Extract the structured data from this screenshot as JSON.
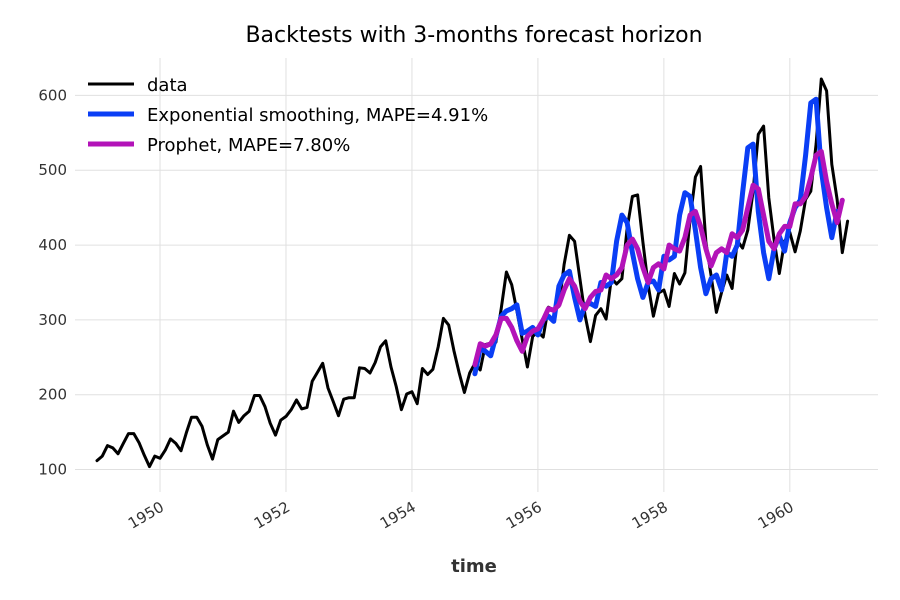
{
  "chart_data": {
    "type": "line",
    "title": "Backtests with 3-months forecast horizon",
    "xlabel": "time",
    "ylabel": "",
    "xlim": [
      1948.65,
      1961.4
    ],
    "ylim": [
      70,
      650
    ],
    "xticks": [
      1950,
      1952,
      1954,
      1956,
      1958,
      1960
    ],
    "xtick_labels": [
      "1950",
      "1952",
      "1954",
      "1956",
      "1958",
      "1960"
    ],
    "yticks": [
      100,
      200,
      300,
      400,
      500,
      600
    ],
    "ytick_labels": [
      "100",
      "200",
      "300",
      "400",
      "500",
      "600"
    ],
    "grid": true,
    "legend_position": "top-left",
    "series": [
      {
        "name": "data",
        "color": "#000000",
        "start": [
          1949,
          1
        ],
        "values": [
          112,
          118,
          132,
          129,
          121,
          135,
          148,
          148,
          136,
          119,
          104,
          118,
          115,
          126,
          141,
          135,
          125,
          149,
          170,
          170,
          158,
          133,
          114,
          140,
          145,
          150,
          178,
          163,
          172,
          178,
          199,
          199,
          184,
          162,
          146,
          166,
          171,
          180,
          193,
          181,
          183,
          218,
          230,
          242,
          209,
          191,
          172,
          194,
          196,
          196,
          236,
          235,
          229,
          243,
          264,
          272,
          237,
          211,
          180,
          201,
          204,
          188,
          235,
          227,
          234,
          264,
          302,
          293,
          259,
          229,
          203,
          229,
          242,
          233,
          267,
          269,
          270,
          315,
          364,
          347,
          312,
          274,
          237,
          278,
          284,
          277,
          317,
          313,
          318,
          374,
          413,
          405,
          355,
          306,
          271,
          306,
          315,
          301,
          356,
          348,
          355,
          422,
          465,
          467,
          404,
          347,
          305,
          336,
          340,
          318,
          362,
          348,
          363,
          435,
          491,
          505,
          404,
          359,
          310,
          337,
          360,
          342,
          406,
          396,
          420,
          472,
          548,
          559,
          463,
          407,
          362,
          405,
          417,
          391,
          419,
          461,
          472,
          535,
          622,
          606,
          508,
          461,
          390,
          432
        ]
      },
      {
        "name": "Exponential smoothing, MAPE=4.91%",
        "color": "#0a3ef5",
        "start": [
          1955,
          1
        ],
        "values": [
          228,
          262,
          258,
          252,
          278,
          305,
          312,
          315,
          320,
          282,
          285,
          290,
          280,
          300,
          305,
          298,
          345,
          360,
          365,
          330,
          300,
          320,
          322,
          318,
          350,
          345,
          350,
          405,
          440,
          430,
          390,
          355,
          330,
          350,
          352,
          340,
          385,
          380,
          385,
          440,
          470,
          465,
          420,
          370,
          335,
          355,
          360,
          340,
          390,
          385,
          400,
          470,
          530,
          535,
          445,
          390,
          355,
          395,
          412,
          392,
          430,
          450,
          460,
          520,
          590,
          595,
          500,
          450,
          410,
          445
        ]
      },
      {
        "name": "Prophet, MAPE=7.80%",
        "color": "#b313b8",
        "start": [
          1955,
          1
        ],
        "values": [
          240,
          268,
          265,
          268,
          280,
          302,
          302,
          290,
          272,
          258,
          278,
          285,
          288,
          300,
          315,
          313,
          320,
          340,
          355,
          345,
          325,
          315,
          330,
          338,
          340,
          360,
          355,
          360,
          370,
          400,
          408,
          395,
          370,
          350,
          370,
          375,
          368,
          400,
          395,
          392,
          410,
          440,
          445,
          425,
          395,
          372,
          390,
          395,
          390,
          415,
          410,
          420,
          450,
          480,
          475,
          440,
          405,
          395,
          415,
          425,
          425,
          455,
          455,
          465,
          490,
          520,
          525,
          485,
          455,
          430,
          460
        ]
      }
    ]
  }
}
